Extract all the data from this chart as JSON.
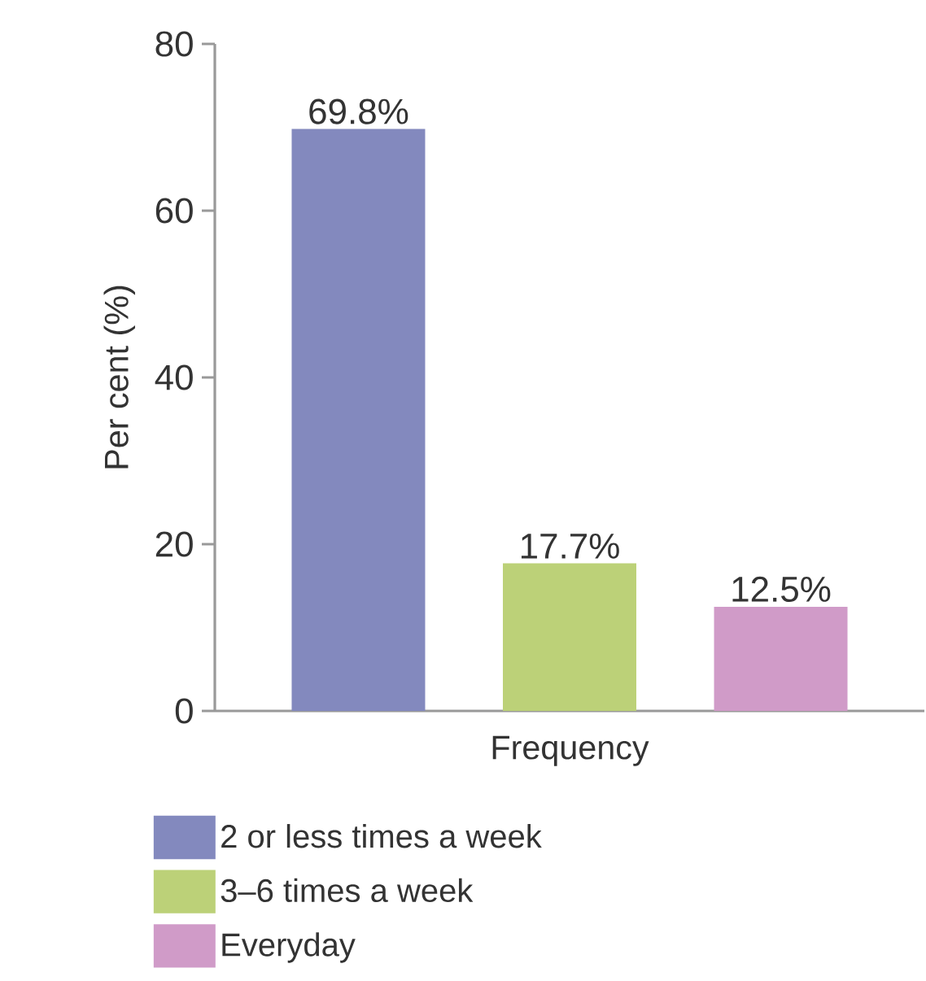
{
  "chart_data": {
    "type": "bar",
    "xlabel": "Frequency",
    "ylabel": "Per cent (%)",
    "categories": [
      null,
      null,
      null
    ],
    "series": [
      {
        "name": "2 or less times a week",
        "color": "#8389be",
        "values": [
          69.8,
          null,
          null
        ],
        "value_labels": [
          "69.8%",
          null,
          null
        ]
      },
      {
        "name": "3–6 times a week",
        "color": "#bcd178",
        "values": [
          null,
          17.7,
          null
        ],
        "value_labels": [
          null,
          "17.7%",
          null
        ]
      },
      {
        "name": "Everyday",
        "color": "#d09bc8",
        "values": [
          null,
          null,
          12.5
        ],
        "value_labels": [
          null,
          null,
          "12.5%"
        ]
      }
    ],
    "ylim": [
      0,
      80
    ],
    "yticks": [
      0,
      20,
      40,
      60,
      80
    ],
    "grid": false,
    "legend": "bottom"
  }
}
